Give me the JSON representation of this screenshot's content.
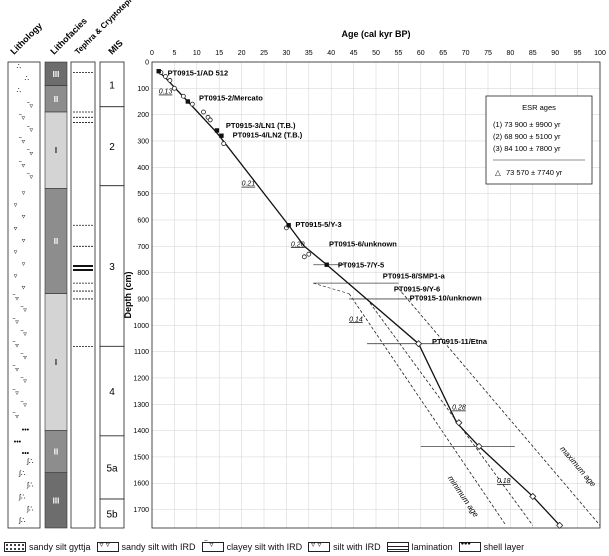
{
  "headers": {
    "lithology": "Lithology",
    "lithofacies": "Lithofacies",
    "tephra": "Tephra & Cryptotephra",
    "mis": "MIS"
  },
  "lithofacies_units": [
    {
      "label": "III",
      "from": 0,
      "to": 90,
      "color": "#6d6d6d"
    },
    {
      "label": "II",
      "from": 90,
      "to": 190,
      "color": "#8d8d8d"
    },
    {
      "label": "I",
      "from": 190,
      "to": 480,
      "color": "#d4d4d4"
    },
    {
      "label": "II",
      "from": 480,
      "to": 880,
      "color": "#8d8d8d"
    },
    {
      "label": "I",
      "from": 880,
      "to": 1400,
      "color": "#d4d4d4"
    },
    {
      "label": "II",
      "from": 1400,
      "to": 1560,
      "color": "#8d8d8d"
    },
    {
      "label": "III",
      "from": 1560,
      "to": 1770,
      "color": "#6d6d6d"
    }
  ],
  "mis_units": [
    {
      "label": "1",
      "from": 0,
      "to": 170
    },
    {
      "label": "2",
      "from": 170,
      "to": 470
    },
    {
      "label": "3",
      "from": 470,
      "to": 1080
    },
    {
      "label": "4",
      "from": 1080,
      "to": 1420
    },
    {
      "label": "5a",
      "from": 1420,
      "to": 1660
    },
    {
      "label": "5b",
      "from": 1660,
      "to": 1770
    }
  ],
  "tephra_lines": [
    {
      "depth": 40,
      "bold": false
    },
    {
      "depth": 190,
      "bold": false
    },
    {
      "depth": 210,
      "bold": false
    },
    {
      "depth": 230,
      "bold": false
    },
    {
      "depth": 620,
      "bold": false
    },
    {
      "depth": 700,
      "bold": false
    },
    {
      "depth": 775,
      "bold": true
    },
    {
      "depth": 790,
      "bold": true
    },
    {
      "depth": 840,
      "bold": false
    },
    {
      "depth": 870,
      "bold": false
    },
    {
      "depth": 900,
      "bold": false
    },
    {
      "depth": 1080,
      "bold": false
    }
  ],
  "chart_data": {
    "type": "line",
    "title": "Age (cal kyr BP)",
    "xlabel": "Age (cal kyr BP)",
    "ylabel": "Depth (cm)",
    "xlim": [
      0,
      100
    ],
    "ylim": [
      0,
      1770
    ],
    "x_ticks": [
      0,
      5,
      10,
      15,
      20,
      25,
      30,
      35,
      40,
      45,
      50,
      55,
      60,
      65,
      70,
      75,
      80,
      85,
      90,
      95,
      100
    ],
    "y_ticks": [
      0,
      100,
      200,
      300,
      400,
      500,
      600,
      700,
      800,
      900,
      1000,
      1100,
      1200,
      1300,
      1400,
      1500,
      1600,
      1700
    ],
    "age_model": {
      "x": [
        1.4,
        3.0,
        8.0,
        14.0,
        15.0,
        30.5,
        34.0,
        39.0,
        59.5,
        68.0,
        73.0,
        85.0,
        91.0
      ],
      "y": [
        35,
        60,
        150,
        260,
        280,
        620,
        700,
        770,
        1070,
        1370,
        1460,
        1650,
        1760
      ]
    },
    "calibration_points": {
      "x": [
        2.0,
        3.0,
        4.0,
        5.0,
        7.0,
        9.0,
        11.5,
        12.5,
        13.0,
        16.0,
        30.0,
        34.0,
        35.0
      ],
      "y": [
        40,
        55,
        70,
        100,
        130,
        160,
        190,
        210,
        220,
        310,
        630,
        740,
        730
      ]
    },
    "square_points": {
      "x": [
        1.5,
        8.0,
        14.5,
        15.5,
        30.5,
        39.0
      ],
      "y": [
        35,
        150,
        260,
        280,
        620,
        770
      ]
    },
    "diamond_points": {
      "x": [
        59.5,
        68.5,
        73.0,
        85.0,
        91.0
      ],
      "y": [
        1070,
        1370,
        1460,
        1650,
        1760
      ]
    },
    "tephra_labels": [
      {
        "text": "PT0915-1/AD 512",
        "x": 3.5,
        "y": 40
      },
      {
        "text": "PT0915-2/Mercato",
        "x": 10.5,
        "y": 135
      },
      {
        "text": "PT0915-3/LN1 (T.B.)",
        "x": 16.5,
        "y": 240
      },
      {
        "text": "PT0915-4/LN2 (T.B.)",
        "x": 18.0,
        "y": 275
      },
      {
        "text": "PT0915-5/Y-3",
        "x": 32.0,
        "y": 615
      },
      {
        "text": "PT0915-6/unknown",
        "x": 39.5,
        "y": 690
      },
      {
        "text": "PT0915-7/Y-5",
        "x": 41.5,
        "y": 770
      },
      {
        "text": "PT0915-8/SMP1-a",
        "x": 51.5,
        "y": 810
      },
      {
        "text": "PT0915-9/Y-6",
        "x": 54.0,
        "y": 860
      },
      {
        "text": "PT0915-10/unknown",
        "x": 57.5,
        "y": 895
      },
      {
        "text": "PT0915-11/Etna",
        "x": 62.5,
        "y": 1060
      }
    ],
    "error_bars": [
      {
        "y": 770,
        "x0": 36.0,
        "x1": 43.0
      },
      {
        "y": 840,
        "x0": 36.0,
        "x1": 55.0
      },
      {
        "y": 900,
        "x0": 44.0,
        "x1": 58.0
      },
      {
        "y": 1070,
        "x0": 48.0,
        "x1": 64.0
      },
      {
        "y": 1460,
        "x0": 60.0,
        "x1": 81.0
      }
    ],
    "sed_rates": [
      {
        "text": "0.13",
        "x": 1.5,
        "y": 120
      },
      {
        "text": "0.21",
        "x": 20.0,
        "y": 470
      },
      {
        "text": "0.20",
        "x": 31.0,
        "y": 700
      },
      {
        "text": "0.14",
        "x": 44.0,
        "y": 985
      },
      {
        "text": "0.28",
        "x": 67.0,
        "y": 1320
      },
      {
        "text": "0.18",
        "x": 77.0,
        "y": 1600
      }
    ],
    "min_age_line": {
      "x": [
        44.0,
        79.0
      ],
      "y": [
        880,
        1760
      ]
    },
    "max_age_line": {
      "x": [
        55.0,
        100.0
      ],
      "y": [
        860,
        1760
      ]
    },
    "middle_dashed_line": {
      "x": [
        48.0,
        85.0
      ],
      "y": [
        900,
        1760
      ]
    },
    "min_age_label": "minimum age",
    "max_age_label": "maximum age",
    "esr_box": {
      "title": "ESR ages",
      "lines": [
        "(1) 73 900 ± 9900 yr",
        "(2) 68 900 ± 5100 yr",
        "(3) 84 100 ± 7800 yr"
      ],
      "mean": "73 570 ± 7740 yr"
    },
    "grid": true
  },
  "legend": [
    {
      "label": "sandy silt gyttja",
      "pattern": "dots"
    },
    {
      "label": "sandy silt with IRD",
      "pattern": "tri"
    },
    {
      "label": "clayey silt with IRD",
      "pattern": "dash"
    },
    {
      "label": "silt with IRD",
      "pattern": "tri"
    },
    {
      "label": "lamination",
      "pattern": "lam"
    },
    {
      "label": "shell layer",
      "pattern": "shell"
    }
  ]
}
